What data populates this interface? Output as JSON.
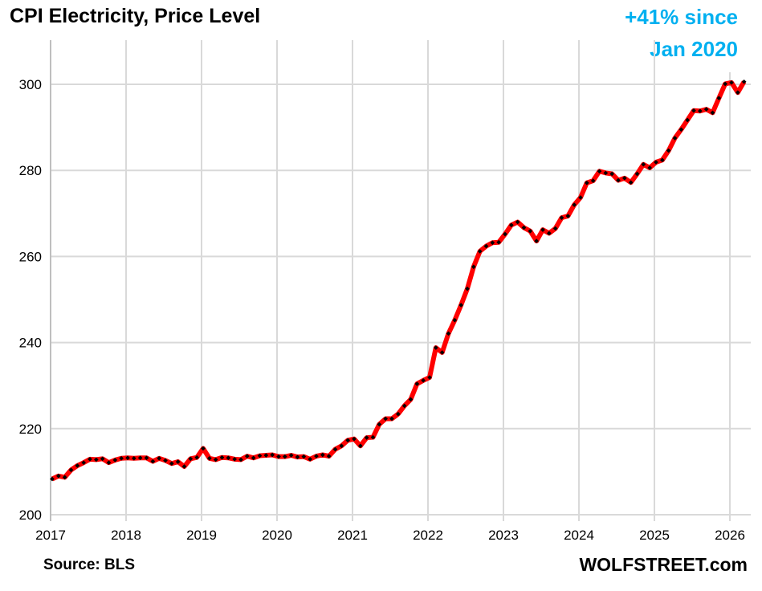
{
  "chart_data": {
    "type": "line",
    "title": "CPI Electricity, Price Level",
    "annotation": [
      "+41% since",
      "Jan 2020"
    ],
    "source": "Source: BLS",
    "brand": "WOLFSTREET.com",
    "xlabel": "",
    "ylabel": "",
    "x_start": "2017-01",
    "frequency": "monthly",
    "xlim": [
      2017,
      2026.25
    ],
    "ylim": [
      200,
      310
    ],
    "x_ticks": [
      "2017",
      "2018",
      "2019",
      "2020",
      "2021",
      "2022",
      "2023",
      "2024",
      "2025",
      "2026"
    ],
    "y_ticks": [
      "200",
      "220",
      "240",
      "260",
      "280",
      "300"
    ],
    "grid": true,
    "legend": "none",
    "colors": {
      "line": "#FF0000",
      "markers": "#000000",
      "annotation": "#00B0F0",
      "grid": "#D9D9D9"
    },
    "values": [
      208.3,
      209.0,
      208.7,
      210.4,
      211.4,
      212.1,
      212.9,
      212.8,
      213.0,
      212.1,
      212.7,
      213.1,
      213.2,
      213.1,
      213.2,
      213.2,
      212.4,
      213.1,
      212.6,
      211.9,
      212.3,
      211.2,
      213.0,
      213.3,
      215.4,
      213.1,
      212.8,
      213.3,
      213.2,
      212.9,
      212.8,
      213.6,
      213.2,
      213.7,
      213.8,
      213.9,
      213.5,
      213.5,
      213.8,
      213.4,
      213.5,
      212.9,
      213.6,
      213.9,
      213.6,
      215.2,
      216.0,
      217.3,
      217.6,
      216.0,
      217.9,
      218.0,
      221.0,
      222.3,
      222.3,
      223.4,
      225.3,
      226.8,
      230.4,
      231.2,
      231.9,
      238.8,
      237.7,
      242.1,
      245.2,
      248.7,
      252.5,
      257.6,
      261.2,
      262.4,
      263.2,
      263.3,
      265.2,
      267.3,
      268.0,
      266.7,
      265.9,
      263.6,
      266.2,
      265.4,
      266.5,
      269.0,
      269.4,
      272.0,
      273.7,
      277.1,
      277.6,
      279.8,
      279.4,
      279.2,
      277.7,
      278.2,
      277.2,
      279.2,
      281.4,
      280.6,
      281.9,
      282.4,
      284.6,
      287.5,
      289.5,
      291.7,
      293.9,
      293.8,
      294.2,
      293.4,
      296.8,
      300.1,
      300.4,
      298.1,
      300.6
    ]
  }
}
